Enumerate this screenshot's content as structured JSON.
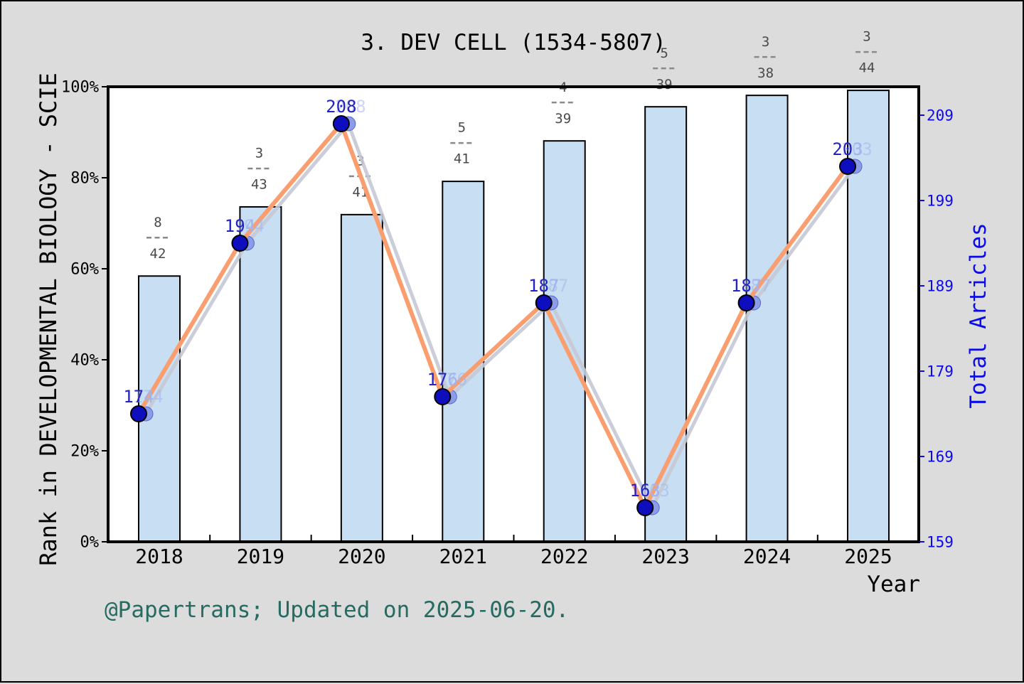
{
  "figure": {
    "title": "3. DEV CELL (1534-5807)",
    "caption": "@Papertrans; Updated on 2025-06-20."
  },
  "axes": {
    "left": {
      "label": "Rank in DEVELOPMENTAL BIOLOGY - SCIE",
      "tick_labels": [
        "0%",
        "20%",
        "40%",
        "60%",
        "80%",
        "100%"
      ],
      "tick_values": [
        0,
        20,
        40,
        60,
        80,
        100
      ]
    },
    "right": {
      "label": "Total Articles",
      "tick_labels": [
        "159",
        "169",
        "179",
        "189",
        "199",
        "209"
      ],
      "tick_values": [
        159,
        169,
        179,
        189,
        199,
        209
      ]
    },
    "x": {
      "label": "Year",
      "tick_labels": [
        "2018",
        "2019",
        "2020",
        "2021",
        "2022",
        "2023",
        "2024",
        "2025"
      ]
    }
  },
  "chart_data": {
    "type": "bar+line",
    "title": "3. DEV CELL (1534-5807)",
    "categories": [
      "2018",
      "2019",
      "2020",
      "2021",
      "2022",
      "2023",
      "2024",
      "2025"
    ],
    "grid": false,
    "legend": false,
    "left_ylim": [
      0,
      100
    ],
    "right_axis_bottom_value": 159,
    "right_axis_units_per_tick": 10,
    "series": [
      {
        "name": "Rank in DEVELOPMENTAL BIOLOGY - SCIE",
        "type": "bar",
        "axis": "left",
        "unit": "percent",
        "values": [
          58.4,
          73.6,
          71.9,
          79.2,
          88.1,
          95.6,
          98.1,
          99.2
        ],
        "rank_labels": [
          {
            "numerator": "8",
            "denominator": "42"
          },
          {
            "numerator": "3",
            "denominator": "43"
          },
          {
            "numerator": "3",
            "denominator": "41"
          },
          {
            "numerator": "5",
            "denominator": "41"
          },
          {
            "numerator": "4",
            "denominator": "39"
          },
          {
            "numerator": "5",
            "denominator": "39"
          },
          {
            "numerator": "3",
            "denominator": "38"
          },
          {
            "numerator": "3",
            "denominator": "44"
          }
        ]
      },
      {
        "name": "Total Articles",
        "type": "line",
        "axis": "right",
        "values": [
          174,
          194,
          208,
          176,
          187,
          163,
          187,
          203
        ],
        "point_labels": [
          {
            "dark": "17",
            "light": "4"
          },
          {
            "dark": "19",
            "light": "4"
          },
          {
            "dark": "208",
            "light": ""
          },
          {
            "dark": "17",
            "light": "6"
          },
          {
            "dark": "18",
            "light": "7"
          },
          {
            "dark": "16",
            "light": "3"
          },
          {
            "dark": "18",
            "light": "7"
          },
          {
            "dark": "20",
            "light": "3"
          }
        ]
      }
    ]
  },
  "colors": {
    "figure_bg": "#dcdcdc",
    "plot_bg": "#ffffff",
    "bar_fill": "#c8def2",
    "bar_edge": "#000000",
    "line": "#fa9e70",
    "line_shadow": "#c5c9d4",
    "marker": "#0e0ebe",
    "marker_edge": "#000000",
    "marker_shadow": "#8b9ce8",
    "value_label_dark": "#2222c8",
    "value_label_light": "#a2b4ee",
    "right_axis_text": "#0b0bea",
    "left_axis_text": "#000000",
    "fraction_text": "#4a4a4a",
    "fraction_dash": "#8a8a8a",
    "caption_text": "#266b62",
    "spine": "#000000"
  }
}
